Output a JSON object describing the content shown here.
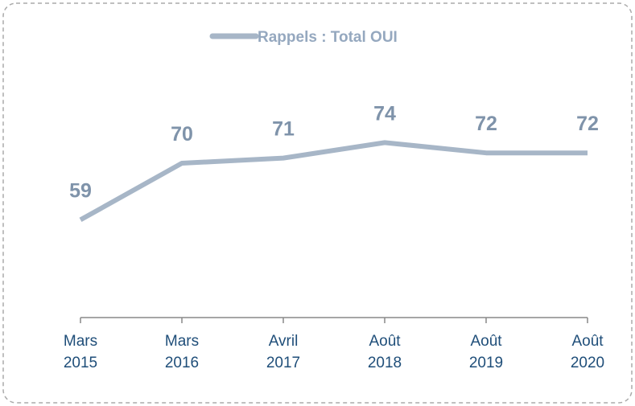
{
  "chart_data": {
    "type": "line",
    "categories": [
      "Mars\n2015",
      "Mars\n2016",
      "Avril\n2017",
      "Août\n2018",
      "Août\n2019",
      "Août\n2020"
    ],
    "series": [
      {
        "name": "Rappels : Total OUI",
        "color": "#a7b6c7",
        "values": [
          59,
          70,
          71,
          74,
          72,
          72
        ]
      }
    ],
    "ylim": [
      40,
      80
    ],
    "legend": "top"
  }
}
